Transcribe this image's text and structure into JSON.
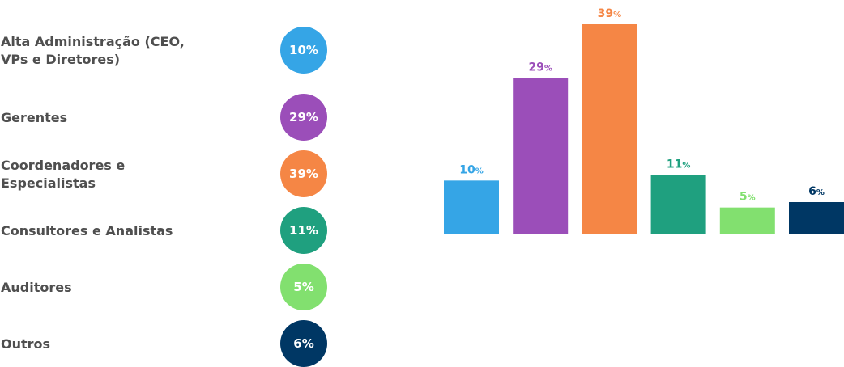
{
  "legend": [
    {
      "label": "Alta Administração (CEO, VPs e Diretores)",
      "badge": "10%",
      "color": "#35A5E6"
    },
    {
      "label": "Gerentes",
      "badge": "29%",
      "color": "#9B4EB9"
    },
    {
      "label": "Coordenadores e Especialistas",
      "badge": "39%",
      "color": "#F58645"
    },
    {
      "label": "Consultores e Analistas",
      "badge": "11%",
      "color": "#1FA07F"
    },
    {
      "label": "Auditores",
      "badge": "5%",
      "color": "#82E06F"
    },
    {
      "label": "Outros",
      "badge": "6%",
      "color": "#003764"
    }
  ],
  "chart_data": {
    "type": "bar",
    "categories": [
      "Alta Administração (CEO, VPs e Diretores)",
      "Gerentes",
      "Coordenadores e Especialistas",
      "Consultores e Analistas",
      "Auditores",
      "Outros"
    ],
    "values": [
      10,
      29,
      39,
      11,
      5,
      6
    ],
    "value_labels": [
      "10",
      "29",
      "39",
      "11",
      "5",
      "6"
    ],
    "unit": "%",
    "colors": [
      "#35A5E6",
      "#9B4EB9",
      "#F58645",
      "#1FA07F",
      "#82E06F",
      "#003764"
    ],
    "ylim": [
      0,
      39
    ],
    "grid": false,
    "axes_visible": false
  }
}
